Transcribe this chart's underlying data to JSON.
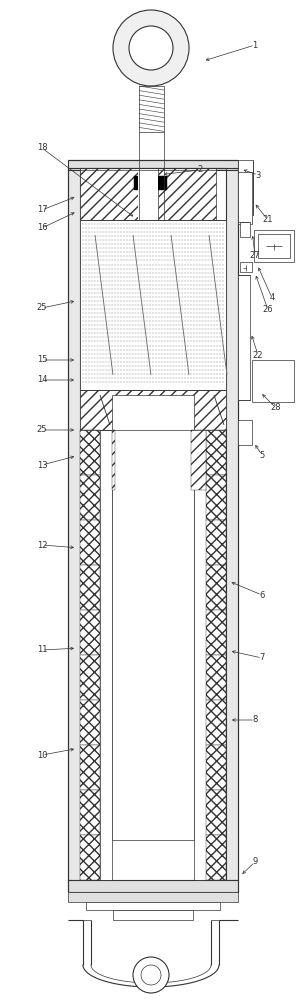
{
  "fig_width": 3.01,
  "fig_height": 10.0,
  "dpi": 100,
  "bg_color": "#ffffff",
  "line_color": "#333333",
  "label_color": "#333333",
  "lw_thin": 0.5,
  "lw_med": 0.8,
  "lw_thick": 1.2,
  "font_size": 6.0
}
